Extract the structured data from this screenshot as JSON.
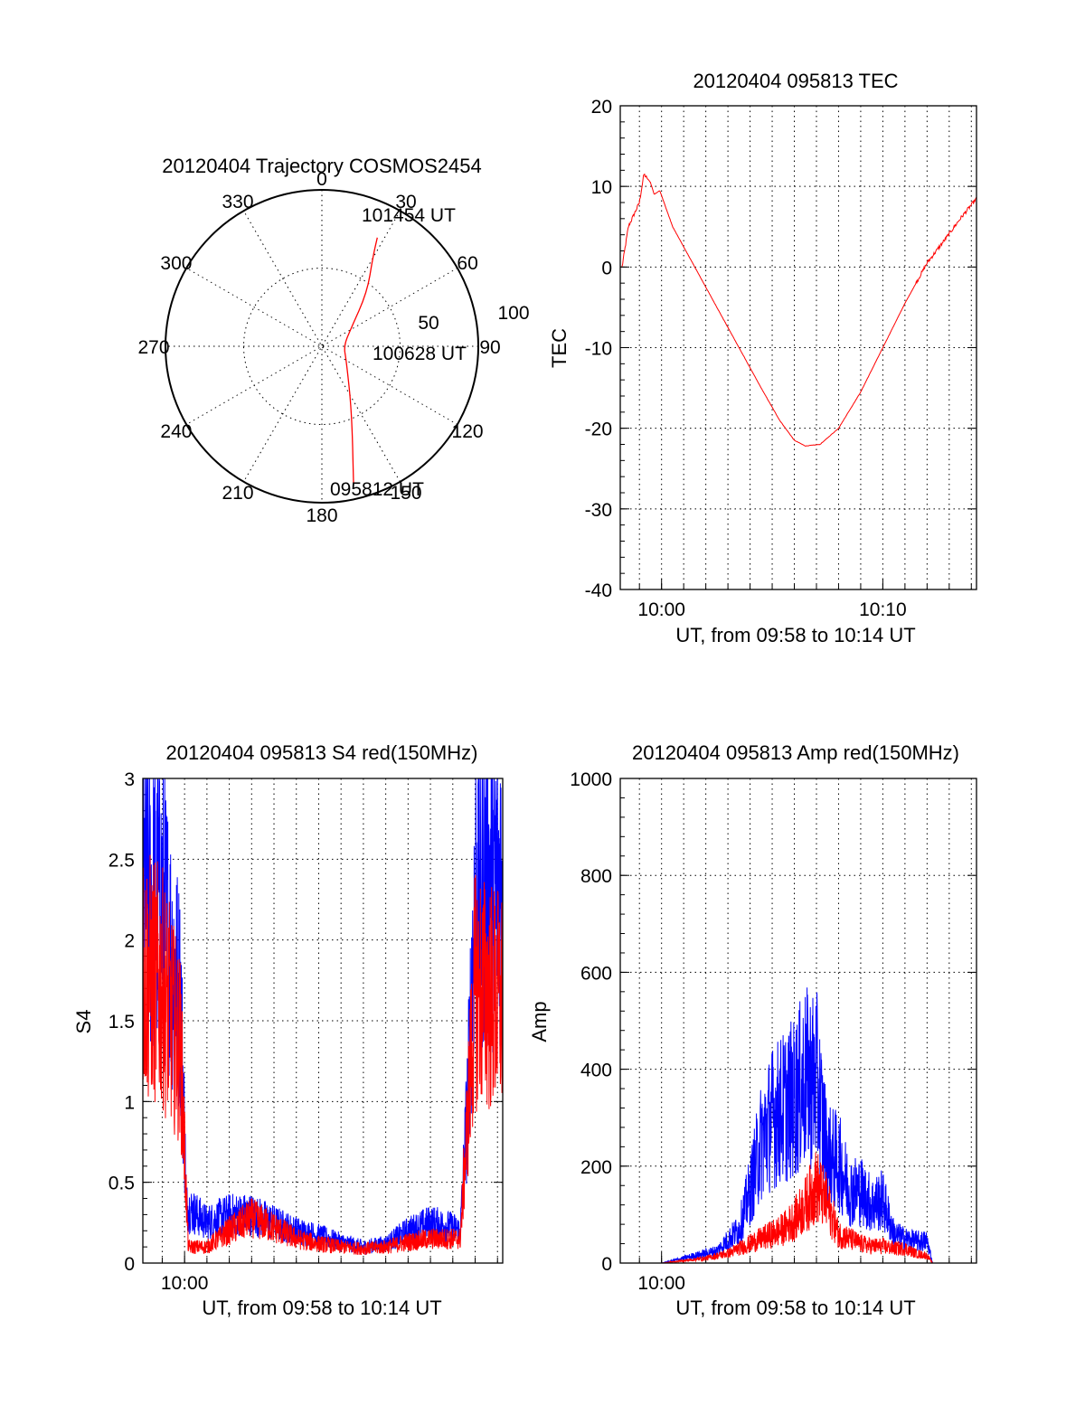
{
  "colors": {
    "red": "#ff0000",
    "blue": "#0000ff",
    "axis": "#000000"
  },
  "chart_data": [
    {
      "id": "trajectory",
      "type": "polar",
      "title": "20120404 Trajectory COSMOS2454",
      "azimuth_labels": [
        "0",
        "30",
        "60",
        "90",
        "120",
        "150",
        "180",
        "210",
        "240",
        "270",
        "300",
        "330"
      ],
      "radius_labels": [
        "50",
        "100"
      ],
      "rlim": [
        0,
        100
      ],
      "grid": true,
      "series": [
        {
          "color": "red",
          "points": [
            {
              "az": 167,
              "r": 90
            },
            {
              "az": 155,
              "r": 45
            },
            {
              "az": 120,
              "r": 18
            },
            {
              "az": 90,
              "r": 14
            },
            {
              "az": 60,
              "r": 21
            },
            {
              "az": 40,
              "r": 45
            },
            {
              "az": 30,
              "r": 65
            },
            {
              "az": 27,
              "r": 78
            }
          ]
        }
      ],
      "annotations": [
        {
          "text": "101454 UT",
          "az": 27,
          "r": 78
        },
        {
          "text": "100628 UT",
          "az": 90,
          "r": 14
        },
        {
          "text": "095812 UT",
          "az": 167,
          "r": 90
        }
      ]
    },
    {
      "id": "tec",
      "type": "line",
      "title": "20120404 095813 TEC",
      "xlabel": "UT, from 09:58 to 10:14 UT",
      "ylabel": "TEC",
      "xlim": [
        "09:58:08",
        "10:14:14"
      ],
      "ylim": [
        -40,
        20
      ],
      "xticks": [
        "10:00",
        "10:10"
      ],
      "yticks": [
        "-40",
        "-30",
        "-20",
        "-10",
        "0",
        "10",
        "20"
      ],
      "grid": true,
      "series": [
        {
          "color": "red",
          "x": [
            "09:58:13",
            "09:58:30",
            "09:59:00",
            "09:59:12",
            "09:59:30",
            "09:59:40",
            "09:59:55",
            "10:00:30",
            "10:01:30",
            "10:02:30",
            "10:03:30",
            "10:04:30",
            "10:05:20",
            "10:06:00",
            "10:06:30",
            "10:07:10",
            "10:08:00",
            "10:09:00",
            "10:10:00",
            "10:11:00",
            "10:12:00",
            "10:12:50",
            "10:13:30",
            "10:14:14"
          ],
          "values": [
            0,
            5,
            8,
            11.5,
            10.5,
            9,
            9.5,
            5,
            0,
            -5,
            -10,
            -15,
            -19,
            -21.5,
            -22.2,
            -22,
            -20,
            -15.5,
            -10,
            -4.5,
            0.5,
            3.5,
            6,
            8.5
          ]
        }
      ]
    },
    {
      "id": "s4",
      "type": "line",
      "title": "20120404 095813 S4 red(150MHz)",
      "xlabel": "UT, from 09:58 to 10:14 UT",
      "ylabel": "S4",
      "xlim": [
        "09:58:08",
        "10:14:14"
      ],
      "ylim": [
        0,
        3
      ],
      "xticks": [
        "10:00"
      ],
      "yticks": [
        "0",
        "0.5",
        "1",
        "1.5",
        "2",
        "2.5",
        "3"
      ],
      "grid": true,
      "series": [
        {
          "color": "blue",
          "x": [
            "09:58:08",
            "09:59:00",
            "09:59:50",
            "10:00:05",
            "10:01:00",
            "10:02:00",
            "10:03:00",
            "10:04:00",
            "10:05:00",
            "10:06:00",
            "10:07:00",
            "10:08:00",
            "10:09:00",
            "10:10:00",
            "10:11:00",
            "10:12:00",
            "10:12:20",
            "10:12:40",
            "10:13:00",
            "10:14:14"
          ],
          "values": [
            2.3,
            2.2,
            1.6,
            0.35,
            0.25,
            0.3,
            0.3,
            0.25,
            0.2,
            0.17,
            0.13,
            0.1,
            0.12,
            0.2,
            0.25,
            0.22,
            0.2,
            1.0,
            2.3,
            2.4
          ]
        },
        {
          "color": "red",
          "x": [
            "09:58:08",
            "09:59:00",
            "09:59:50",
            "10:00:10",
            "10:01:00",
            "10:02:00",
            "10:03:00",
            "10:04:00",
            "10:05:00",
            "10:06:00",
            "10:07:00",
            "10:08:00",
            "10:09:00",
            "10:10:00",
            "10:11:00",
            "10:12:00",
            "10:12:20",
            "10:12:40",
            "10:13:00",
            "10:14:14"
          ],
          "values": [
            1.8,
            1.7,
            1.3,
            0.1,
            0.1,
            0.2,
            0.28,
            0.22,
            0.15,
            0.12,
            0.1,
            0.09,
            0.1,
            0.13,
            0.15,
            0.15,
            0.15,
            0.9,
            1.7,
            1.6
          ]
        }
      ]
    },
    {
      "id": "amp",
      "type": "line",
      "title": "20120404 095813 Amp red(150MHz)",
      "xlabel": "UT, from 09:58 to 10:14 UT",
      "ylabel": "Amp",
      "xlim": [
        "09:58:08",
        "10:14:14"
      ],
      "ylim": [
        0,
        1000
      ],
      "xticks": [
        "10:00"
      ],
      "yticks": [
        "0",
        "200",
        "400",
        "600",
        "800",
        "1000"
      ],
      "grid": true,
      "series": [
        {
          "color": "blue",
          "x": [
            "09:58:08",
            "10:00:00",
            "10:00:30",
            "10:01:30",
            "10:02:30",
            "10:03:30",
            "10:04:00",
            "10:04:30",
            "10:05:00",
            "10:05:30",
            "10:06:00",
            "10:06:30",
            "10:07:00",
            "10:07:30",
            "10:08:00",
            "10:08:30",
            "10:09:00",
            "10:09:30",
            "10:10:00",
            "10:10:30",
            "10:11:00",
            "10:11:30",
            "10:12:00",
            "10:12:15",
            "10:14:14"
          ],
          "values": [
            0,
            0,
            5,
            15,
            25,
            70,
            150,
            250,
            300,
            320,
            340,
            380,
            380,
            220,
            210,
            150,
            150,
            120,
            130,
            60,
            50,
            45,
            45,
            0,
            0
          ]
        },
        {
          "color": "red",
          "x": [
            "09:58:08",
            "10:00:00",
            "10:01:00",
            "10:02:00",
            "10:03:00",
            "10:04:00",
            "10:04:30",
            "10:05:00",
            "10:05:30",
            "10:06:00",
            "10:06:30",
            "10:07:00",
            "10:07:30",
            "10:08:00",
            "10:08:30",
            "10:09:00",
            "10:09:30",
            "10:10:00",
            "10:10:30",
            "10:11:00",
            "10:11:30",
            "10:12:00",
            "10:12:15",
            "10:14:14"
          ],
          "values": [
            0,
            0,
            5,
            10,
            20,
            40,
            50,
            60,
            70,
            90,
            120,
            160,
            120,
            60,
            50,
            40,
            35,
            35,
            30,
            30,
            20,
            15,
            0,
            0
          ]
        }
      ]
    }
  ]
}
